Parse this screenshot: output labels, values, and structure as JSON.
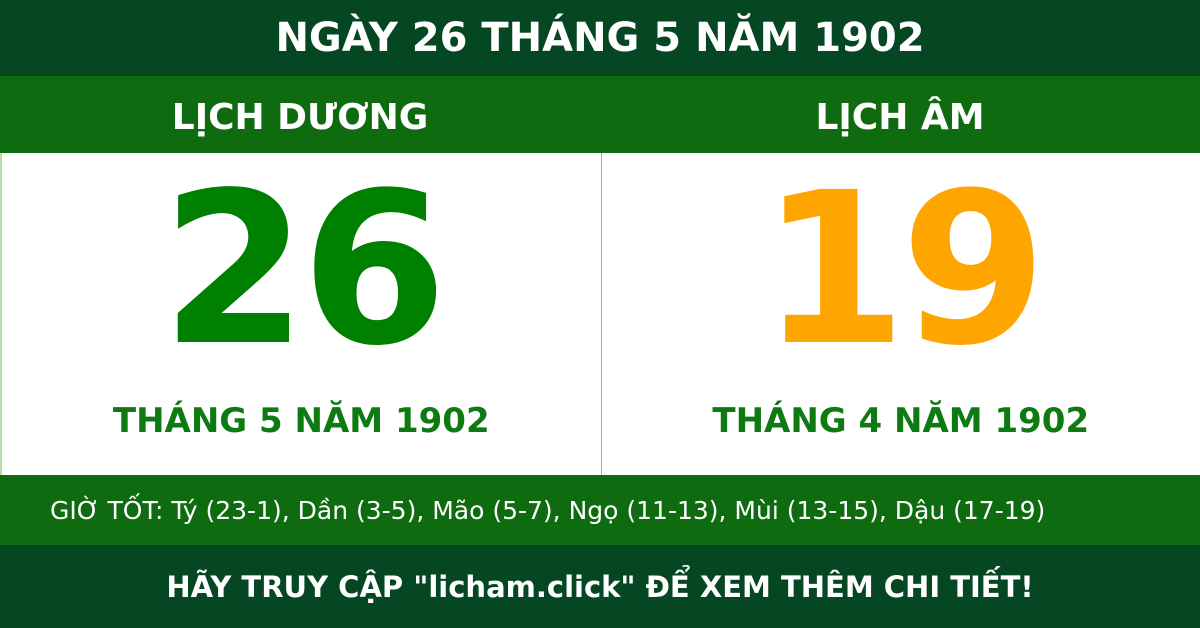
{
  "title": "NGÀY 26 THÁNG 5 NĂM 1902",
  "solar": {
    "heading": "LỊCH DƯƠNG",
    "day": "26",
    "month_year": "THÁNG 5 NĂM 1902",
    "color": "#008000"
  },
  "lunar": {
    "heading": "LỊCH ÂM",
    "day": "19",
    "month_year": "THÁNG 4 NĂM 1902",
    "color": "#ffa500"
  },
  "good_hours": "GIỜ TỐT: Tý (23-1), Dần (3-5), Mão (5-7), Ngọ (11-13), Mùi (13-15), Dậu (17-19)",
  "footer": "HÃY TRUY CẬP \"licham.click\" ĐỂ XEM THÊM CHI TIẾT!"
}
